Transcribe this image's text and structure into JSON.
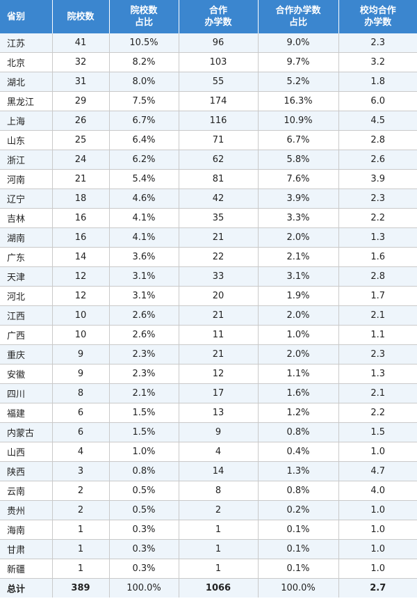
{
  "header": {
    "province": [
      "省别"
    ],
    "schools": [
      "院校数"
    ],
    "school_share": [
      "院校数",
      "占比"
    ],
    "programs": [
      "合作",
      "办学数"
    ],
    "program_share": [
      "合作办学数",
      "占比"
    ],
    "avg": [
      "校均合作",
      "办学数"
    ]
  },
  "rows": [
    [
      "江苏",
      "41",
      "10.5%",
      "96",
      "9.0%",
      "2.3"
    ],
    [
      "北京",
      "32",
      "8.2%",
      "103",
      "9.7%",
      "3.2"
    ],
    [
      "湖北",
      "31",
      "8.0%",
      "55",
      "5.2%",
      "1.8"
    ],
    [
      "黑龙江",
      "29",
      "7.5%",
      "174",
      "16.3%",
      "6.0"
    ],
    [
      "上海",
      "26",
      "6.7%",
      "116",
      "10.9%",
      "4.5"
    ],
    [
      "山东",
      "25",
      "6.4%",
      "71",
      "6.7%",
      "2.8"
    ],
    [
      "浙江",
      "24",
      "6.2%",
      "62",
      "5.8%",
      "2.6"
    ],
    [
      "河南",
      "21",
      "5.4%",
      "81",
      "7.6%",
      "3.9"
    ],
    [
      "辽宁",
      "18",
      "4.6%",
      "42",
      "3.9%",
      "2.3"
    ],
    [
      "吉林",
      "16",
      "4.1%",
      "35",
      "3.3%",
      "2.2"
    ],
    [
      "湖南",
      "16",
      "4.1%",
      "21",
      "2.0%",
      "1.3"
    ],
    [
      "广东",
      "14",
      "3.6%",
      "22",
      "2.1%",
      "1.6"
    ],
    [
      "天津",
      "12",
      "3.1%",
      "33",
      "3.1%",
      "2.8"
    ],
    [
      "河北",
      "12",
      "3.1%",
      "20",
      "1.9%",
      "1.7"
    ],
    [
      "江西",
      "10",
      "2.6%",
      "21",
      "2.0%",
      "2.1"
    ],
    [
      "广西",
      "10",
      "2.6%",
      "11",
      "1.0%",
      "1.1"
    ],
    [
      "重庆",
      "9",
      "2.3%",
      "21",
      "2.0%",
      "2.3"
    ],
    [
      "安徽",
      "9",
      "2.3%",
      "12",
      "1.1%",
      "1.3"
    ],
    [
      "四川",
      "8",
      "2.1%",
      "17",
      "1.6%",
      "2.1"
    ],
    [
      "福建",
      "6",
      "1.5%",
      "13",
      "1.2%",
      "2.2"
    ],
    [
      "内蒙古",
      "6",
      "1.5%",
      "9",
      "0.8%",
      "1.5"
    ],
    [
      "山西",
      "4",
      "1.0%",
      "4",
      "0.4%",
      "1.0"
    ],
    [
      "陕西",
      "3",
      "0.8%",
      "14",
      "1.3%",
      "4.7"
    ],
    [
      "云南",
      "2",
      "0.5%",
      "8",
      "0.8%",
      "4.0"
    ],
    [
      "贵州",
      "2",
      "0.5%",
      "2",
      "0.2%",
      "1.0"
    ],
    [
      "海南",
      "1",
      "0.3%",
      "1",
      "0.1%",
      "1.0"
    ],
    [
      "甘肃",
      "1",
      "0.3%",
      "1",
      "0.1%",
      "1.0"
    ],
    [
      "新疆",
      "1",
      "0.3%",
      "1",
      "0.1%",
      "1.0"
    ]
  ],
  "total": [
    "总计",
    "389",
    "100.0%",
    "1066",
    "100.0%",
    "2.7"
  ],
  "colors": {
    "header_bg": "#3b86cf",
    "header_text": "#ffffff",
    "stripe_bg": "#eef5fb",
    "border": "#c9c9c9"
  }
}
